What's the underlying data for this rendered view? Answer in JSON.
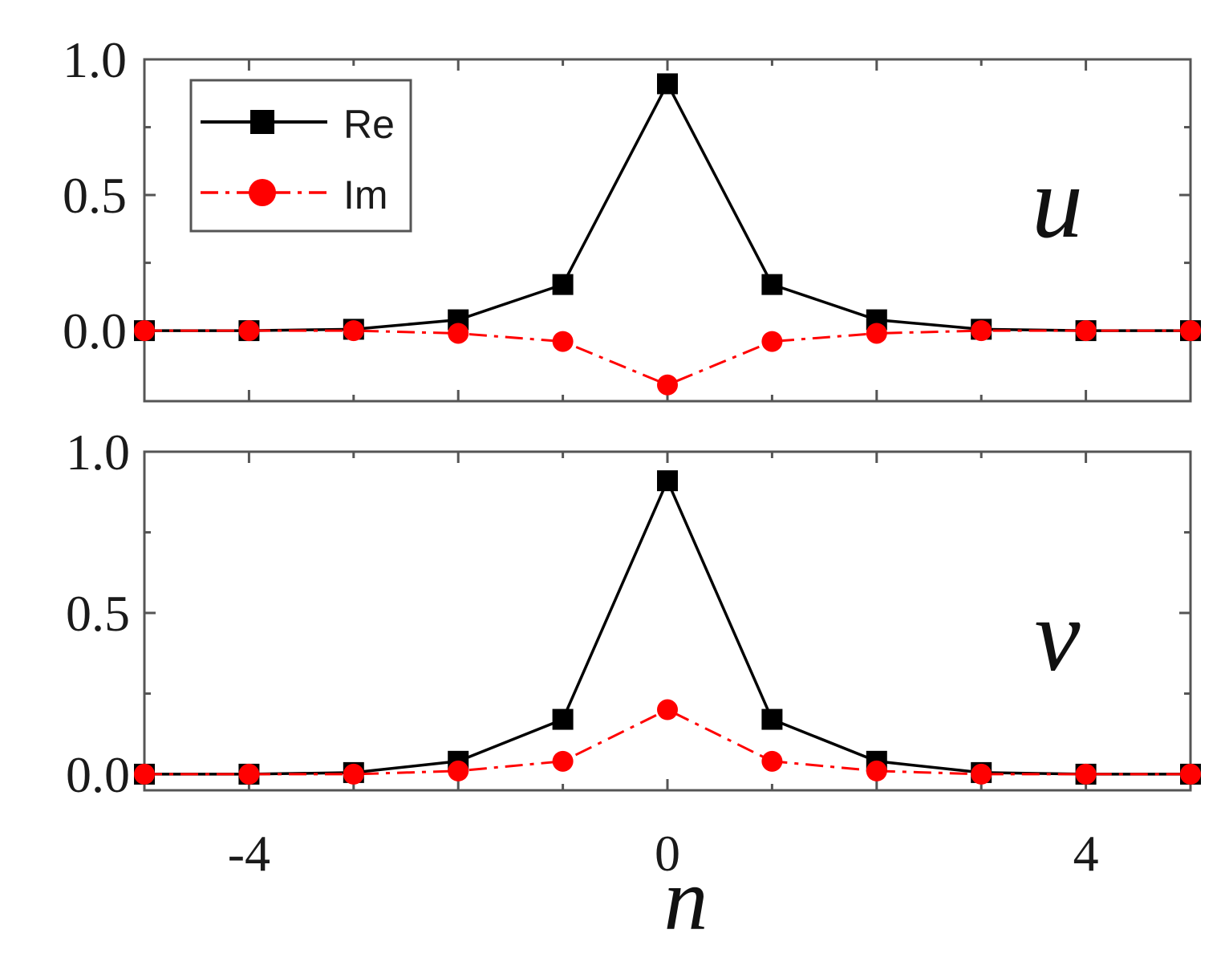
{
  "chart_data": [
    {
      "type": "line",
      "panel_label": "u",
      "x": [
        -5,
        -4,
        -3,
        -2,
        -1,
        0,
        1,
        2,
        3,
        4,
        5
      ],
      "series": [
        {
          "name": "Re",
          "color": "#000000",
          "marker": "square",
          "line_style": "solid",
          "values": [
            0.0,
            0.0,
            0.005,
            0.04,
            0.17,
            0.91,
            0.17,
            0.04,
            0.005,
            0.0,
            0.0
          ]
        },
        {
          "name": "Im",
          "color": "#ff0000",
          "marker": "circle",
          "line_style": "dashdot",
          "values": [
            0.0,
            0.0,
            0.0,
            -0.01,
            -0.04,
            -0.2,
            -0.04,
            -0.01,
            0.0,
            0.0,
            0.0
          ]
        }
      ],
      "xlim": [
        -5,
        5
      ],
      "ylim": [
        -0.26,
        1.0
      ],
      "yticks": [
        "0.0",
        "0.5",
        "1.0"
      ],
      "legend": "top-left"
    },
    {
      "type": "line",
      "panel_label": "v",
      "x": [
        -5,
        -4,
        -3,
        -2,
        -1,
        0,
        1,
        2,
        3,
        4,
        5
      ],
      "series": [
        {
          "name": "Re",
          "color": "#000000",
          "marker": "square",
          "line_style": "solid",
          "values": [
            0.0,
            0.0,
            0.005,
            0.04,
            0.17,
            0.91,
            0.17,
            0.04,
            0.005,
            0.0,
            0.0
          ]
        },
        {
          "name": "Im",
          "color": "#ff0000",
          "marker": "circle",
          "line_style": "dashdot",
          "values": [
            0.0,
            0.0,
            0.0,
            0.01,
            0.04,
            0.2,
            0.04,
            0.01,
            0.0,
            0.0,
            0.0
          ]
        }
      ],
      "xlim": [
        -5,
        5
      ],
      "ylim": [
        -0.05,
        1.0
      ],
      "yticks": [
        "0.0",
        "0.5",
        "1.0"
      ],
      "xticks": [
        "-4",
        "0",
        "4"
      ],
      "xlabel": "n"
    }
  ]
}
